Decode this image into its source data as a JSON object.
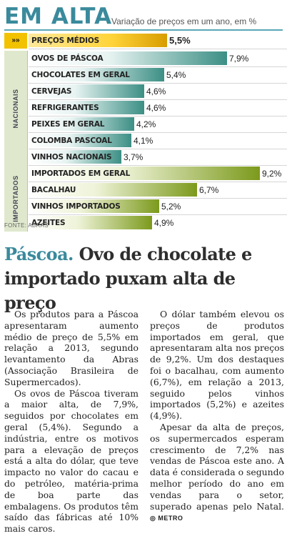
{
  "header": {
    "title": "EM ALTA",
    "subtitle": "Variação de preços em um ano, em %"
  },
  "chart_data": {
    "type": "bar",
    "title": "EM ALTA",
    "subtitle": "Variação de preços em um ano, em %",
    "orientation": "horizontal",
    "unit": "%",
    "xlim": [
      0,
      9.2
    ],
    "groups": [
      {
        "name": "",
        "items": [
          {
            "label": "PREÇOS MÉDIOS",
            "value": 5.5,
            "display": "5,5%"
          }
        ]
      },
      {
        "name": "NACIONAIS",
        "items": [
          {
            "label": "OVOS DE PÁSCOA",
            "value": 7.9,
            "display": "7,9%"
          },
          {
            "label": "CHOCOLATES EM GERAL",
            "value": 5.4,
            "display": "5,4%"
          },
          {
            "label": "CERVEJAS",
            "value": 4.6,
            "display": "4,6%"
          },
          {
            "label": "REFRIGERANTES",
            "value": 4.6,
            "display": "4,6%"
          },
          {
            "label": "PEIXES EM GERAL",
            "value": 4.2,
            "display": "4,2%"
          },
          {
            "label": "COLOMBA PASCOAL",
            "value": 4.1,
            "display": "4,1%"
          },
          {
            "label": "VINHOS NACIONAIS",
            "value": 3.7,
            "display": "3,7%"
          }
        ]
      },
      {
        "name": "IMPORTADOS",
        "items": [
          {
            "label": "IMPORTADOS EM GERAL",
            "value": 9.2,
            "display": "9,2%"
          },
          {
            "label": "BACALHAU",
            "value": 6.7,
            "display": "6,7%"
          },
          {
            "label": "VINHOS IMPORTADOS",
            "value": 5.2,
            "display": "5,2%"
          },
          {
            "label": "AZEITES",
            "value": 4.9,
            "display": "4,9%"
          }
        ]
      }
    ],
    "arrows_label": "»»",
    "source": "FONTE: ABRAS"
  },
  "colors": {
    "accent": "#3a8a9c",
    "nacionais_bar": "#3c8f85",
    "importados_bar": "#7c9a1c",
    "medios_bar": "#f2c200"
  },
  "article": {
    "title_keyword": "Páscoa.",
    "title_rest": "Ovo de chocolate e importado puxam alta de preço",
    "left_paragraphs": [
      "Os produtos para a Páscoa apresentaram aumento médio de preço de 5,5% em relação a 2013, segundo levantamento da Abras (Associação Brasileira de Supermercados).",
      "Os ovos de Páscoa tiveram a maior alta, de 7,9%, seguidos por chocolates em geral (5,4%). Segundo a indústria, entre os motivos para a elevação de preços está a alta do dólar, que teve impacto no valor do cacau e do petróleo, matéria-prima de boa parte das embalagens. Os produtos têm saído das fábricas até 10% mais caros."
    ],
    "right_paragraphs": [
      "O dólar também elevou os preços de produtos importados em geral, que apresentaram alta nos preços de 9,2%. Um dos destaques foi o bacalhau, com aumento (6,7%), em relação a 2013, seguido pelos vinhos importados (5,2%) e azeites (4,9%).",
      "Apesar da alta de preços, os supermercados esperam crescimento de 7,2% nas vendas de Páscoa este ano. A data é considerada o segundo melhor período do ano em vendas para o setor, superado apenas pelo Natal."
    ],
    "signature": "METRO"
  }
}
